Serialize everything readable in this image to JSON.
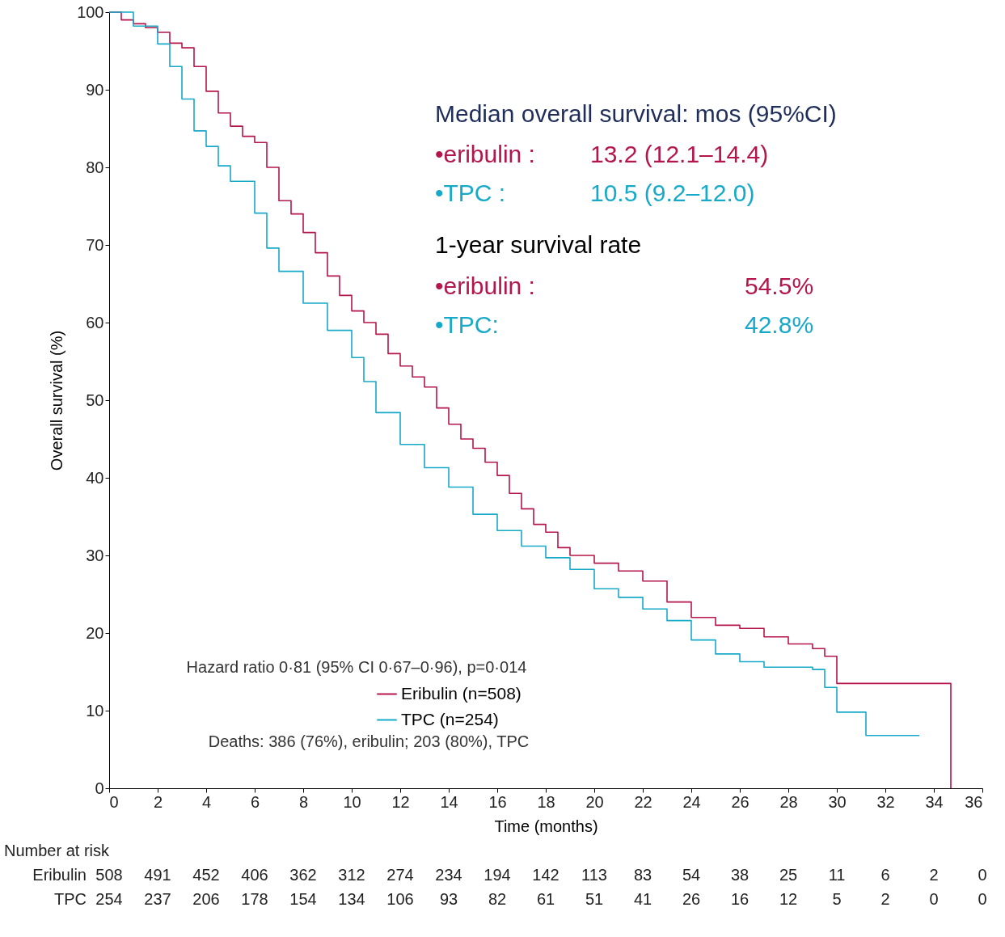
{
  "chart_data": {
    "type": "step",
    "xlabel": "Time (months)",
    "ylabel": "Overall survival (%)",
    "xlim": [
      0,
      36
    ],
    "ylim": [
      0,
      100
    ],
    "xticks": [
      0,
      2,
      4,
      6,
      8,
      10,
      12,
      14,
      16,
      18,
      20,
      22,
      24,
      26,
      28,
      30,
      32,
      34,
      36
    ],
    "yticks": [
      0,
      10,
      20,
      30,
      40,
      50,
      60,
      70,
      80,
      90,
      100
    ],
    "grid": false,
    "legend": "bottom",
    "line_style": "solid",
    "marker": "none",
    "series": [
      {
        "name": "Eribulin (n=508)",
        "color": "#b5164a",
        "x": [
          0,
          0.5,
          1,
          1.5,
          2,
          2.5,
          3,
          3.5,
          4,
          4.5,
          5,
          5.5,
          6,
          6.5,
          7,
          7.5,
          8,
          8.5,
          9,
          9.5,
          10,
          10.5,
          11,
          11.5,
          12,
          12.5,
          13,
          13.5,
          14,
          14.5,
          15,
          15.5,
          16,
          16.5,
          17,
          17.5,
          18,
          18.5,
          19,
          20,
          21,
          22,
          23,
          24,
          25,
          26,
          27,
          28,
          29,
          29.5,
          30,
          34.7,
          34.7
        ],
        "values": [
          100,
          99,
          98.5,
          98,
          97.4,
          96,
          95.4,
          93,
          89.8,
          87,
          85.3,
          84,
          83.2,
          80,
          75.7,
          74,
          71.6,
          69,
          66,
          63.5,
          61.5,
          60,
          58.5,
          56,
          54.4,
          53,
          51.7,
          49,
          46.9,
          45,
          43.8,
          42,
          40.3,
          38,
          36,
          34,
          33,
          31,
          30,
          29,
          28,
          26.7,
          24,
          22,
          21,
          20.6,
          19.5,
          18.6,
          18,
          17,
          13.5,
          13.5,
          0
        ]
      },
      {
        "name": "TPC (n=254)",
        "color": "#17a9c9",
        "x": [
          0,
          1,
          2,
          2.5,
          3,
          3.5,
          4,
          4.5,
          5,
          6,
          6.5,
          7,
          8,
          9,
          10,
          10.5,
          11,
          12,
          13,
          14,
          15,
          16,
          17,
          18,
          19,
          20,
          21,
          22,
          23,
          24,
          25,
          26,
          27,
          29,
          29.5,
          30,
          31.2,
          33.4
        ],
        "values": [
          100,
          98.2,
          95.9,
          93,
          88.8,
          84.7,
          82.7,
          80.2,
          78.2,
          74.1,
          69.6,
          66.6,
          62.5,
          59,
          55.5,
          52.4,
          48.4,
          44.3,
          41.3,
          38.8,
          35.3,
          33.2,
          31.2,
          29.7,
          28.2,
          25.7,
          24.6,
          23.1,
          21.6,
          19.1,
          17.3,
          16.3,
          15.6,
          15.3,
          13,
          9.8,
          6.8,
          6.8
        ]
      }
    ],
    "annotations": [
      "Median overall survival:  mos (95%CI)",
      "•eribulin :",
      "13.2 (12.1–14.4)",
      "•TPC :",
      "10.5 (9.2–12.0)",
      "1-year survival rate",
      "•eribulin :",
      "54.5%",
      "•TPC:",
      "42.8%",
      "Hazard ratio 0·81 (95% CI 0·67–0·96), p=0·014",
      "Deaths: 386 (76%), eribulin; 203 (80%), TPC",
      "Number at risk",
      "Eribulin 508 491 452 406 362 312 274 234 194 142 113 83 54 38 25 11 6 2 0",
      "TPC 254 237 206 178 154 134 106 93 82 61 51 41 26 16 12 5 2 0 0"
    ]
  }
}
